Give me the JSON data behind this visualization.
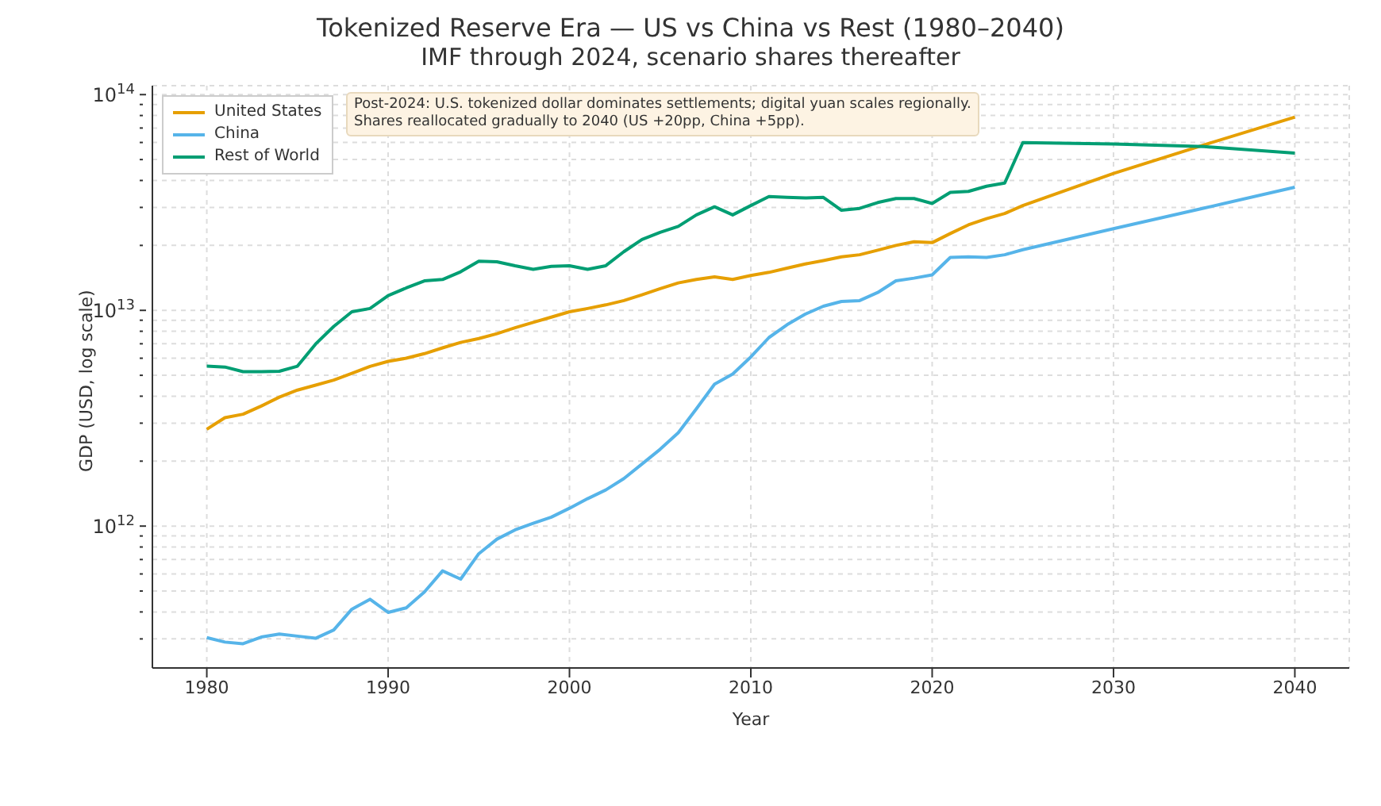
{
  "chart_data": {
    "type": "line",
    "title": "Tokenized Reserve Era — US vs China vs Rest (1980–2040)",
    "subtitle": "IMF through 2024, scenario shares thereafter",
    "xlabel": "Year",
    "ylabel": "GDP (USD, log scale)",
    "annotations": [
      "Post-2024: U.S. tokenized dollar dominates settlements; digital yuan scales regionally.\nShares reallocated gradually to 2040 (US +20pp, China +5pp)."
    ],
    "x": [
      1980,
      1981,
      1982,
      1983,
      1984,
      1985,
      1986,
      1987,
      1988,
      1989,
      1990,
      1991,
      1992,
      1993,
      1994,
      1995,
      1996,
      1997,
      1998,
      1999,
      2000,
      2001,
      2002,
      2003,
      2004,
      2005,
      2006,
      2007,
      2008,
      2009,
      2010,
      2011,
      2012,
      2013,
      2014,
      2015,
      2016,
      2017,
      2018,
      2019,
      2020,
      2021,
      2022,
      2023,
      2024,
      2025,
      2030,
      2035,
      2040
    ],
    "series": [
      {
        "name": "United States",
        "color": "#e69f00",
        "values": [
          2810000000000.0,
          3180000000000.0,
          3300000000000.0,
          3600000000000.0,
          3960000000000.0,
          4270000000000.0,
          4500000000000.0,
          4750000000000.0,
          5100000000000.0,
          5500000000000.0,
          5800000000000.0,
          6000000000000.0,
          6300000000000.0,
          6700000000000.0,
          7100000000000.0,
          7400000000000.0,
          7800000000000.0,
          8300000000000.0,
          8800000000000.0,
          9300000000000.0,
          9850000000000.0,
          10200000000000.0,
          10600000000000.0,
          11100000000000.0,
          11800000000000.0,
          12600000000000.0,
          13400000000000.0,
          13900000000000.0,
          14300000000000.0,
          13900000000000.0,
          14500000000000.0,
          15000000000000.0,
          15700000000000.0,
          16400000000000.0,
          17000000000000.0,
          17700000000000.0,
          18100000000000.0,
          19000000000000.0,
          20000000000000.0,
          20800000000000.0,
          20600000000000.0,
          22700000000000.0,
          24900000000000.0,
          26600000000000.0,
          28100000000000.0,
          30600000000000.0,
          43100000000000.0,
          58500000000000.0,
          78600000000000.0
        ]
      },
      {
        "name": "China",
        "color": "#56b4e9",
        "values": [
          304000000000.0,
          290000000000.0,
          285000000000.0,
          306000000000.0,
          316000000000.0,
          309000000000.0,
          302000000000.0,
          330000000000.0,
          412000000000.0,
          458000000000.0,
          398000000000.0,
          418000000000.0,
          495000000000.0,
          620000000000.0,
          568000000000.0,
          745000000000.0,
          870000000000.0,
          960000000000.0,
          1030000000000.0,
          1100000000000.0,
          1210000000000.0,
          1340000000000.0,
          1470000000000.0,
          1660000000000.0,
          1940000000000.0,
          2270000000000.0,
          2710000000000.0,
          3500000000000.0,
          4550000000000.0,
          5070000000000.0,
          6080000000000.0,
          7480000000000.0,
          8580000000000.0,
          9600000000000.0,
          10450000000000.0,
          11000000000000.0,
          11100000000000.0,
          12100000000000.0,
          13700000000000.0,
          14100000000000.0,
          14600000000000.0,
          17600000000000.0,
          17700000000000.0,
          17600000000000.0,
          18100000000000.0,
          19100000000000.0,
          23900000000000.0,
          29800000000000.0,
          37200000000000.0
        ]
      },
      {
        "name": "Rest of World",
        "color": "#009e73",
        "values": [
          5510000000000.0,
          5460000000000.0,
          5200000000000.0,
          5200000000000.0,
          5220000000000.0,
          5510000000000.0,
          6980000000000.0,
          8420000000000.0,
          9850000000000.0,
          10200000000000.0,
          11700000000000.0,
          12700000000000.0,
          13700000000000.0,
          13900000000000.0,
          15100000000000.0,
          16900000000000.0,
          16800000000000.0,
          16100000000000.0,
          15500000000000.0,
          16000000000000.0,
          16100000000000.0,
          15500000000000.0,
          16100000000000.0,
          18700000000000.0,
          21300000000000.0,
          23000000000000.0,
          24500000000000.0,
          27700000000000.0,
          30200000000000.0,
          27700000000000.0,
          30600000000000.0,
          33700000000000.0,
          33400000000000.0,
          33200000000000.0,
          33400000000000.0,
          29100000000000.0,
          29700000000000.0,
          31600000000000.0,
          33000000000000.0,
          33000000000000.0,
          31300000000000.0,
          35200000000000.0,
          35600000000000.0,
          37600000000000.0,
          38900000000000.0,
          59900000000000.0,
          59100000000000.0,
          57400000000000.0,
          53600000000000.0
        ]
      }
    ],
    "xlim": [
      1977,
      2043
    ],
    "xticks": [
      1980,
      1990,
      2000,
      2010,
      2020,
      2030,
      2040
    ],
    "ylim": [
      220000000000.0,
      110000000000000.0
    ],
    "yticks": [
      {
        "value": 300000000000.0,
        "label": null
      },
      {
        "value": 400000000000.0,
        "label": null
      },
      {
        "value": 500000000000.0,
        "label": null
      },
      {
        "value": 600000000000.0,
        "label": null
      },
      {
        "value": 700000000000.0,
        "label": null
      },
      {
        "value": 800000000000.0,
        "label": null
      },
      {
        "value": 900000000000.0,
        "label": null
      },
      {
        "value": 1000000000000.0,
        "label": "10$^{12}$"
      },
      {
        "value": 2000000000000.0,
        "label": null
      },
      {
        "value": 3000000000000.0,
        "label": null
      },
      {
        "value": 4000000000000.0,
        "label": null
      },
      {
        "value": 5000000000000.0,
        "label": null
      },
      {
        "value": 6000000000000.0,
        "label": null
      },
      {
        "value": 7000000000000.0,
        "label": null
      },
      {
        "value": 8000000000000.0,
        "label": null
      },
      {
        "value": 9000000000000.0,
        "label": null
      },
      {
        "value": 10000000000000.0,
        "label": "10$^{13}$"
      },
      {
        "value": 20000000000000.0,
        "label": null
      },
      {
        "value": 30000000000000.0,
        "label": null
      },
      {
        "value": 40000000000000.0,
        "label": null
      },
      {
        "value": 50000000000000.0,
        "label": null
      },
      {
        "value": 60000000000000.0,
        "label": null
      },
      {
        "value": 70000000000000.0,
        "label": null
      },
      {
        "value": 80000000000000.0,
        "label": null
      },
      {
        "value": 90000000000000.0,
        "label": null
      },
      {
        "value": 100000000000000.0,
        "label": "10$^{14}$"
      }
    ],
    "log": true,
    "grid": true,
    "legend": "top left",
    "marker": "none",
    "line_style": "solid"
  }
}
